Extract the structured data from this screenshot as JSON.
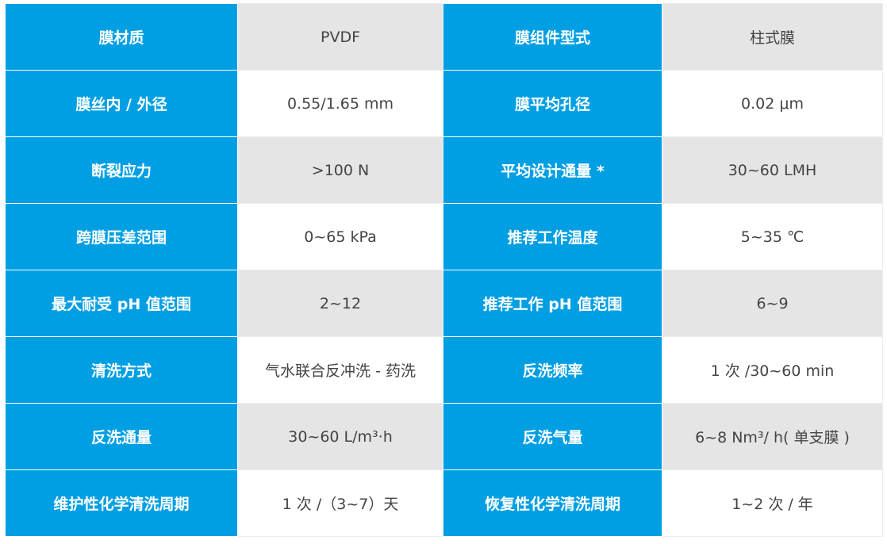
{
  "colors": {
    "label_bg": "#009fe3",
    "value_bg_alt": "#e5e5e5",
    "value_bg": "#ffffff"
  },
  "rows": [
    {
      "k1": "膜材质",
      "v1": "PVDF",
      "k2": "膜组件型式",
      "v2": "柱式膜"
    },
    {
      "k1": "膜丝内 / 外径",
      "v1": "0.55/1.65 mm",
      "k2": "膜平均孔径",
      "v2": "0.02 μm"
    },
    {
      "k1": "断裂应力",
      "v1": ">100 N",
      "k2": "平均设计通量 *",
      "v2": "30~60 LMH"
    },
    {
      "k1": "跨膜压差范围",
      "v1": "0~65 kPa",
      "k2": "推荐工作温度",
      "v2": "5~35 ℃"
    },
    {
      "k1": "最大耐受 pH 值范围",
      "v1": "2~12",
      "k2": "推荐工作 pH 值范围",
      "v2": "6~9"
    },
    {
      "k1": "清洗方式",
      "v1": "气水联合反冲洗 - 药洗",
      "k2": "反洗频率",
      "v2": "1 次 /30~60 min"
    },
    {
      "k1": "反洗通量",
      "v1": "30~60 L/m³·h",
      "k2": "反洗气量",
      "v2": "6~8 Nm³/ h( 单支膜 )"
    },
    {
      "k1": "维护性化学清洗周期",
      "v1": "1 次 /（3~7）天",
      "k2": "恢复性化学清洗周期",
      "v2": "1~2 次 / 年"
    }
  ]
}
